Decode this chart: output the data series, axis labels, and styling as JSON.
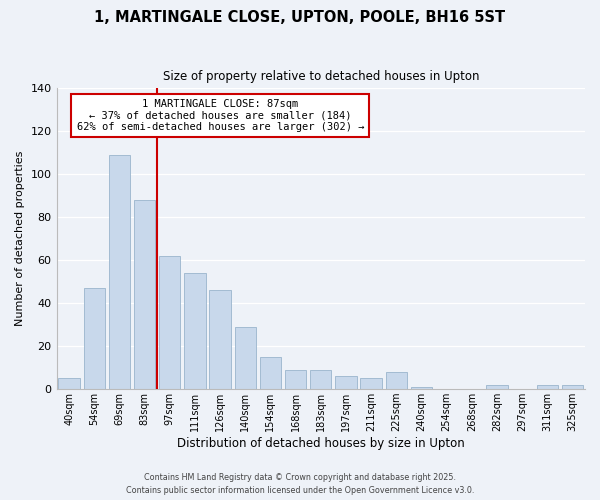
{
  "title": "1, MARTINGALE CLOSE, UPTON, POOLE, BH16 5ST",
  "subtitle": "Size of property relative to detached houses in Upton",
  "xlabel": "Distribution of detached houses by size in Upton",
  "ylabel": "Number of detached properties",
  "bar_color": "#c8d8eb",
  "bar_edge_color": "#9ab5cc",
  "background_color": "#eef2f8",
  "categories": [
    "40sqm",
    "54sqm",
    "69sqm",
    "83sqm",
    "97sqm",
    "111sqm",
    "126sqm",
    "140sqm",
    "154sqm",
    "168sqm",
    "183sqm",
    "197sqm",
    "211sqm",
    "225sqm",
    "240sqm",
    "254sqm",
    "268sqm",
    "282sqm",
    "297sqm",
    "311sqm",
    "325sqm"
  ],
  "values": [
    5,
    47,
    109,
    88,
    62,
    54,
    46,
    29,
    15,
    9,
    9,
    6,
    5,
    8,
    1,
    0,
    0,
    2,
    0,
    2,
    2
  ],
  "ylim": [
    0,
    140
  ],
  "yticks": [
    0,
    20,
    40,
    60,
    80,
    100,
    120,
    140
  ],
  "vline_x": 3.5,
  "vline_color": "#cc0000",
  "annotation_title": "1 MARTINGALE CLOSE: 87sqm",
  "annotation_line1": "← 37% of detached houses are smaller (184)",
  "annotation_line2": "62% of semi-detached houses are larger (302) →",
  "footer1": "Contains HM Land Registry data © Crown copyright and database right 2025.",
  "footer2": "Contains public sector information licensed under the Open Government Licence v3.0."
}
